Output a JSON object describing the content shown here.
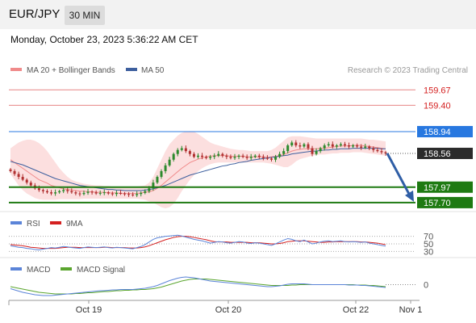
{
  "header": {
    "pair": "EUR/JPY",
    "timeframe": "30 MIN",
    "datetime": "Monday, October 23, 2023 5:36:22 AM CET"
  },
  "legend": {
    "ma_bb": "MA 20 + Bollinger Bands",
    "ma50": "MA 50",
    "credit": "Research © 2023 Trading Central",
    "rsi": "RSI",
    "rsi_ma": "9MA",
    "macd": "MACD",
    "macd_signal": "MACD Signal"
  },
  "colors": {
    "bb_fill": "#fbd9d9",
    "ma20": "#f08a8a",
    "ma50": "#3d5f9e",
    "resistance": "#d42020",
    "pivot": "#2878e0",
    "support": "#1e7a12",
    "arrow": "#2f5ea6",
    "candle_up": "#2d8a2d",
    "candle_down": "#b03030",
    "rsi": "#5b84d8",
    "rsi_ma": "#d42020",
    "macd": "#5b84d8",
    "macd_signal": "#5aa52e"
  },
  "chart_data": [
    {
      "type": "candlestick",
      "title": "EUR/JPY 30 MIN",
      "y_range": [
        157.6,
        159.9
      ],
      "x_ticks": [
        "Oct 19",
        "Oct 20",
        "Oct 22",
        "Nov 1"
      ],
      "levels": [
        {
          "label": "159.67",
          "value": 159.67,
          "kind": "resistance"
        },
        {
          "label": "159.40",
          "value": 159.4,
          "kind": "resistance"
        },
        {
          "label": "158.94",
          "value": 158.94,
          "kind": "pivot"
        },
        {
          "label": "158.56",
          "value": 158.56,
          "kind": "last"
        },
        {
          "label": "157.97",
          "value": 157.97,
          "kind": "support"
        },
        {
          "label": "157.70",
          "value": 157.7,
          "kind": "support"
        }
      ],
      "close": [
        158.25,
        158.2,
        158.15,
        158.1,
        158.05,
        158.0,
        157.95,
        157.92,
        157.9,
        157.88,
        157.86,
        157.88,
        157.9,
        157.92,
        157.9,
        157.88,
        157.86,
        157.85,
        157.87,
        157.89,
        157.88,
        157.86,
        157.87,
        157.88,
        157.86,
        157.85,
        157.87,
        157.86,
        157.85,
        157.84,
        157.83,
        157.85,
        157.87,
        157.9,
        157.95,
        158.05,
        158.15,
        158.25,
        158.35,
        158.45,
        158.55,
        158.62,
        158.65,
        158.6,
        158.55,
        158.5,
        158.52,
        158.5,
        158.48,
        158.5,
        158.52,
        158.55,
        158.52,
        158.5,
        158.48,
        158.5,
        158.52,
        158.5,
        158.48,
        158.5,
        158.52,
        158.5,
        158.48,
        158.47,
        158.45,
        158.5,
        158.55,
        158.6,
        158.7,
        158.75,
        158.7,
        158.68,
        158.72,
        158.65,
        158.55,
        158.6,
        158.65,
        158.7,
        158.72,
        158.68,
        158.7,
        158.72,
        158.7,
        158.68,
        158.7,
        158.68,
        158.66,
        158.68,
        158.65,
        158.62,
        158.6,
        158.58,
        158.56
      ],
      "ma20": [
        158.45,
        158.4,
        158.35,
        158.3,
        158.25,
        158.2,
        158.15,
        158.1,
        158.07,
        158.04,
        158.0,
        157.98,
        157.96,
        157.94,
        157.93,
        157.92,
        157.91,
        157.9,
        157.9,
        157.89,
        157.89,
        157.88,
        157.88,
        157.88,
        157.87,
        157.87,
        157.87,
        157.86,
        157.86,
        157.86,
        157.86,
        157.86,
        157.87,
        157.88,
        157.89,
        157.91,
        157.95,
        158.0,
        158.06,
        158.12,
        158.18,
        158.24,
        158.3,
        158.35,
        158.4,
        158.43,
        158.46,
        158.48,
        158.5,
        158.51,
        158.52,
        158.52,
        158.52,
        158.52,
        158.51,
        158.51,
        158.51,
        158.51,
        158.5,
        158.5,
        158.5,
        158.5,
        158.5,
        158.49,
        158.5,
        158.51,
        158.52,
        158.54,
        158.57,
        158.6,
        158.62,
        158.63,
        158.64,
        158.64,
        158.64,
        158.64,
        158.65,
        158.65,
        158.66,
        158.67,
        158.68,
        158.69,
        158.69,
        158.69,
        158.7,
        158.7,
        158.7,
        158.69,
        158.68,
        158.67,
        158.66,
        158.65,
        158.64
      ],
      "bb_upper": [
        158.65,
        158.7,
        158.75,
        158.78,
        158.8,
        158.8,
        158.78,
        158.74,
        158.68,
        158.6,
        158.5,
        158.4,
        158.3,
        158.22,
        158.15,
        158.1,
        158.07,
        158.05,
        158.03,
        158.02,
        158.01,
        158.0,
        158.0,
        157.99,
        157.99,
        157.98,
        157.98,
        157.98,
        157.98,
        157.98,
        157.98,
        157.98,
        157.99,
        158.0,
        158.05,
        158.15,
        158.3,
        158.45,
        158.6,
        158.72,
        158.8,
        158.87,
        158.92,
        158.94,
        158.95,
        158.94,
        158.9,
        158.85,
        158.8,
        158.75,
        158.72,
        158.7,
        158.68,
        158.66,
        158.64,
        158.63,
        158.62,
        158.62,
        158.61,
        158.6,
        158.6,
        158.6,
        158.6,
        158.6,
        158.62,
        158.66,
        158.72,
        158.78,
        158.84,
        158.86,
        158.86,
        158.86,
        158.85,
        158.84,
        158.83,
        158.82,
        158.82,
        158.82,
        158.82,
        158.82,
        158.82,
        158.82,
        158.82,
        158.82,
        158.82,
        158.82,
        158.82,
        158.81,
        158.8,
        158.8,
        158.79,
        158.78,
        158.77
      ],
      "bb_lower": [
        158.2,
        158.1,
        158.0,
        157.92,
        157.86,
        157.82,
        157.78,
        157.76,
        157.75,
        157.75,
        157.75,
        157.75,
        157.76,
        157.76,
        157.76,
        157.76,
        157.76,
        157.76,
        157.77,
        157.77,
        157.77,
        157.77,
        157.77,
        157.77,
        157.77,
        157.77,
        157.77,
        157.77,
        157.77,
        157.77,
        157.77,
        157.77,
        157.76,
        157.75,
        157.72,
        157.7,
        157.66,
        157.62,
        157.6,
        157.62,
        157.68,
        157.78,
        157.9,
        158.0,
        158.1,
        158.18,
        158.25,
        158.3,
        158.34,
        158.37,
        158.39,
        158.4,
        158.4,
        158.4,
        158.4,
        158.4,
        158.4,
        158.4,
        158.4,
        158.4,
        158.4,
        158.4,
        158.4,
        158.39,
        158.38,
        158.36,
        158.34,
        158.32,
        158.32,
        158.36,
        158.42,
        158.46,
        158.48,
        158.5,
        158.52,
        158.53,
        158.54,
        158.54,
        158.55,
        158.56,
        158.56,
        158.57,
        158.57,
        158.57,
        158.58,
        158.58,
        158.58,
        158.57,
        158.56,
        158.55,
        158.54,
        158.53,
        158.52
      ],
      "ma50": [
        158.42,
        158.4,
        158.38,
        158.36,
        158.33,
        158.3,
        158.27,
        158.24,
        158.21,
        158.18,
        158.15,
        158.12,
        158.1,
        158.08,
        158.06,
        158.04,
        158.02,
        158.0,
        157.99,
        157.98,
        157.97,
        157.96,
        157.95,
        157.94,
        157.93,
        157.93,
        157.92,
        157.92,
        157.91,
        157.91,
        157.91,
        157.91,
        157.91,
        157.92,
        157.93,
        157.94,
        157.96,
        157.98,
        158.0,
        158.03,
        158.06,
        158.09,
        158.12,
        158.15,
        158.18,
        158.2,
        158.22,
        158.24,
        158.26,
        158.28,
        158.3,
        158.32,
        158.34,
        158.35,
        158.37,
        158.38,
        158.4,
        158.41,
        158.42,
        158.44,
        158.45,
        158.46,
        158.47,
        158.48,
        158.49,
        158.5,
        158.51,
        158.52,
        158.53,
        158.55,
        158.56,
        158.57,
        158.58,
        158.59,
        158.6,
        158.6,
        158.61,
        158.62,
        158.62,
        158.63,
        158.63,
        158.64,
        158.64,
        158.64,
        158.65,
        158.65,
        158.65,
        158.65,
        158.65,
        158.65,
        158.65,
        158.64,
        158.64
      ],
      "forecast": {
        "from": 158.56,
        "to": 157.7
      }
    },
    {
      "type": "line",
      "title": "RSI",
      "levels": [
        70,
        50,
        30
      ],
      "y_range": [
        20,
        80
      ],
      "series": [
        {
          "name": "RSI",
          "values": [
            45,
            43,
            41,
            40,
            38,
            37,
            35,
            34,
            36,
            38,
            40,
            39,
            41,
            43,
            42,
            40,
            39,
            38,
            40,
            42,
            41,
            40,
            41,
            42,
            40,
            39,
            41,
            40,
            39,
            38,
            37,
            40,
            43,
            48,
            55,
            62,
            66,
            68,
            70,
            71,
            72,
            73,
            71,
            68,
            65,
            62,
            60,
            58,
            55,
            52,
            54,
            56,
            55,
            53,
            52,
            54,
            56,
            55,
            52,
            51,
            53,
            52,
            50,
            48,
            46,
            50,
            55,
            60,
            64,
            62,
            58,
            56,
            60,
            55,
            50,
            52,
            55,
            57,
            58,
            56,
            57,
            58,
            56,
            55,
            56,
            55,
            54,
            55,
            52,
            50,
            48,
            46,
            44
          ]
        },
        {
          "name": "9MA",
          "values": [
            48,
            47,
            46,
            45,
            43,
            41,
            40,
            39,
            38,
            38,
            38,
            38,
            39,
            40,
            41,
            41,
            41,
            40,
            40,
            40,
            40,
            40,
            40,
            41,
            41,
            40,
            40,
            40,
            40,
            39,
            39,
            39,
            40,
            42,
            45,
            49,
            53,
            57,
            61,
            64,
            67,
            69,
            70,
            70,
            69,
            67,
            65,
            63,
            61,
            58,
            56,
            55,
            55,
            55,
            54,
            54,
            54,
            54,
            54,
            53,
            53,
            53,
            52,
            51,
            50,
            50,
            51,
            53,
            56,
            57,
            58,
            58,
            58,
            57,
            56,
            55,
            54,
            54,
            55,
            55,
            56,
            56,
            56,
            56,
            56,
            56,
            55,
            55,
            54,
            53,
            52,
            50,
            48
          ]
        }
      ]
    },
    {
      "type": "line",
      "title": "MACD",
      "levels": [
        0
      ],
      "y_range": [
        -0.35,
        0.25
      ],
      "series": [
        {
          "name": "MACD",
          "values": [
            -0.1,
            -0.13,
            -0.16,
            -0.19,
            -0.21,
            -0.23,
            -0.25,
            -0.26,
            -0.27,
            -0.27,
            -0.27,
            -0.26,
            -0.25,
            -0.24,
            -0.23,
            -0.22,
            -0.21,
            -0.2,
            -0.19,
            -0.18,
            -0.17,
            -0.16,
            -0.15,
            -0.15,
            -0.14,
            -0.13,
            -0.13,
            -0.12,
            -0.12,
            -0.12,
            -0.12,
            -0.11,
            -0.1,
            -0.09,
            -0.07,
            -0.05,
            -0.02,
            0.02,
            0.06,
            0.1,
            0.13,
            0.16,
            0.18,
            0.19,
            0.18,
            0.17,
            0.15,
            0.13,
            0.11,
            0.09,
            0.08,
            0.07,
            0.06,
            0.05,
            0.04,
            0.03,
            0.02,
            0.01,
            0.0,
            -0.01,
            -0.02,
            -0.03,
            -0.04,
            -0.05,
            -0.05,
            -0.04,
            -0.03,
            -0.01,
            0.01,
            0.02,
            0.02,
            0.02,
            0.02,
            0.01,
            0.0,
            0.0,
            0.0,
            0.0,
            0.0,
            0.0,
            0.0,
            0.0,
            0.0,
            -0.01,
            -0.01,
            -0.01,
            -0.02,
            -0.02,
            -0.03,
            -0.04,
            -0.05,
            -0.06,
            -0.07
          ]
        },
        {
          "name": "MACD Signal",
          "values": [
            -0.05,
            -0.07,
            -0.09,
            -0.11,
            -0.13,
            -0.15,
            -0.17,
            -0.19,
            -0.2,
            -0.21,
            -0.22,
            -0.23,
            -0.23,
            -0.23,
            -0.23,
            -0.23,
            -0.22,
            -0.22,
            -0.21,
            -0.2,
            -0.2,
            -0.19,
            -0.18,
            -0.17,
            -0.17,
            -0.16,
            -0.15,
            -0.15,
            -0.14,
            -0.14,
            -0.13,
            -0.13,
            -0.12,
            -0.12,
            -0.11,
            -0.1,
            -0.08,
            -0.06,
            -0.03,
            0.0,
            0.03,
            0.06,
            0.09,
            0.11,
            0.13,
            0.14,
            0.14,
            0.14,
            0.14,
            0.13,
            0.12,
            0.11,
            0.1,
            0.09,
            0.08,
            0.07,
            0.06,
            0.05,
            0.04,
            0.03,
            0.02,
            0.01,
            0.0,
            -0.01,
            -0.02,
            -0.02,
            -0.02,
            -0.02,
            -0.02,
            -0.01,
            -0.01,
            0.0,
            0.0,
            0.0,
            0.0,
            0.0,
            0.0,
            0.0,
            0.0,
            0.0,
            0.0,
            0.0,
            0.0,
            0.0,
            0.0,
            -0.01,
            -0.01,
            -0.01,
            -0.02,
            -0.02,
            -0.03,
            -0.04,
            -0.05
          ]
        }
      ]
    }
  ]
}
